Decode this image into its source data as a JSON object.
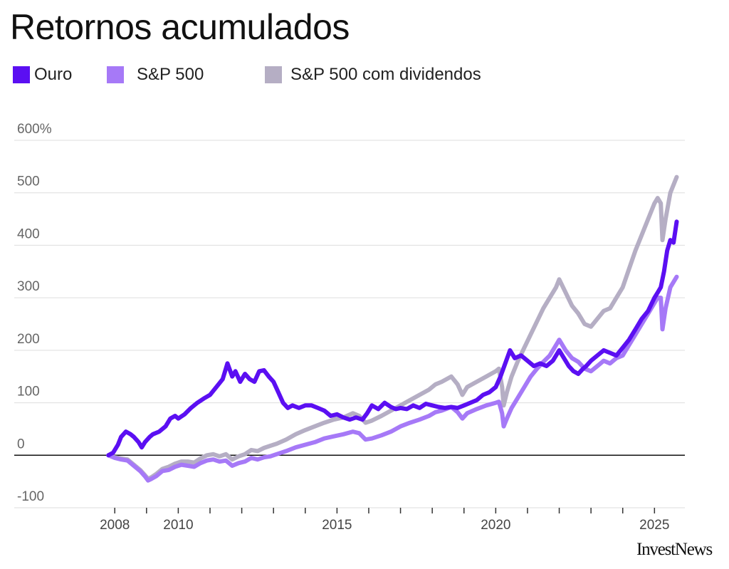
{
  "title": "Retornos acumulados",
  "brand": "InvestNews",
  "chart_data": {
    "type": "line",
    "title": "Retornos acumulados",
    "xlabel": "",
    "ylabel": "",
    "xlim": [
      2007.3,
      2025.8
    ],
    "ylim": [
      -100,
      600
    ],
    "yticks": [
      {
        "value": 600,
        "label": "600%"
      },
      {
        "value": 500,
        "label": "500"
      },
      {
        "value": 400,
        "label": "400"
      },
      {
        "value": 300,
        "label": "300"
      },
      {
        "value": 200,
        "label": "200"
      },
      {
        "value": 100,
        "label": "100"
      },
      {
        "value": 0,
        "label": "0"
      },
      {
        "value": -100,
        "label": "-100"
      }
    ],
    "xticks": [
      {
        "value": 2008,
        "label": "2008"
      },
      {
        "value": 2010,
        "label": "2010"
      },
      {
        "value": 2015,
        "label": "2015"
      },
      {
        "value": 2020,
        "label": "2020"
      },
      {
        "value": 2025,
        "label": "2025"
      }
    ],
    "grid": true,
    "legend_position": "top-left",
    "series": [
      {
        "name": "Ouro",
        "color": "#5b0ff2",
        "x": [
          2007.8,
          2007.95,
          2008.1,
          2008.2,
          2008.35,
          2008.5,
          2008.6,
          2008.75,
          2008.85,
          2008.95,
          2009.1,
          2009.2,
          2009.4,
          2009.6,
          2009.75,
          2009.9,
          2010.0,
          2010.2,
          2010.4,
          2010.6,
          2010.8,
          2011.0,
          2011.2,
          2011.4,
          2011.55,
          2011.7,
          2011.8,
          2011.95,
          2012.1,
          2012.25,
          2012.4,
          2012.55,
          2012.7,
          2012.85,
          2013.0,
          2013.15,
          2013.3,
          2013.45,
          2013.6,
          2013.8,
          2014.0,
          2014.2,
          2014.4,
          2014.6,
          2014.8,
          2015.0,
          2015.2,
          2015.4,
          2015.6,
          2015.8,
          2015.95,
          2016.1,
          2016.3,
          2016.5,
          2016.7,
          2016.85,
          2017.0,
          2017.2,
          2017.4,
          2017.6,
          2017.8,
          2018.0,
          2018.2,
          2018.4,
          2018.6,
          2018.8,
          2019.0,
          2019.2,
          2019.4,
          2019.6,
          2019.8,
          2020.0,
          2020.15,
          2020.3,
          2020.45,
          2020.6,
          2020.8,
          2021.0,
          2021.2,
          2021.4,
          2021.6,
          2021.8,
          2022.0,
          2022.15,
          2022.3,
          2022.45,
          2022.6,
          2022.75,
          2022.85,
          2023.0,
          2023.2,
          2023.4,
          2023.6,
          2023.8,
          2024.0,
          2024.2,
          2024.4,
          2024.6,
          2024.8,
          2025.0,
          2025.1,
          2025.2,
          2025.3,
          2025.4,
          2025.5,
          2025.6,
          2025.7
        ],
        "values": [
          0,
          5,
          20,
          35,
          45,
          40,
          35,
          25,
          15,
          25,
          35,
          40,
          45,
          55,
          70,
          75,
          70,
          78,
          90,
          100,
          108,
          115,
          130,
          145,
          175,
          150,
          160,
          140,
          155,
          145,
          140,
          160,
          162,
          150,
          140,
          120,
          100,
          90,
          95,
          90,
          95,
          95,
          90,
          85,
          75,
          78,
          72,
          68,
          72,
          68,
          80,
          95,
          88,
          100,
          92,
          88,
          90,
          88,
          95,
          90,
          98,
          95,
          92,
          90,
          92,
          90,
          95,
          100,
          105,
          115,
          120,
          130,
          150,
          175,
          200,
          185,
          190,
          180,
          170,
          175,
          170,
          180,
          200,
          185,
          170,
          160,
          155,
          165,
          170,
          180,
          190,
          200,
          195,
          190,
          205,
          220,
          240,
          260,
          275,
          300,
          310,
          320,
          350,
          390,
          410,
          405,
          445
        ]
      },
      {
        "name": "S&P 500",
        "color": "#a679f7",
        "x": [
          2007.8,
          2008.0,
          2008.2,
          2008.4,
          2008.6,
          2008.8,
          2008.95,
          2009.05,
          2009.15,
          2009.3,
          2009.5,
          2009.7,
          2009.9,
          2010.1,
          2010.3,
          2010.5,
          2010.7,
          2010.9,
          2011.1,
          2011.3,
          2011.5,
          2011.7,
          2011.9,
          2012.1,
          2012.3,
          2012.5,
          2012.7,
          2012.9,
          2013.1,
          2013.4,
          2013.7,
          2014.0,
          2014.3,
          2014.6,
          2014.9,
          2015.2,
          2015.5,
          2015.7,
          2015.9,
          2016.1,
          2016.4,
          2016.7,
          2017.0,
          2017.3,
          2017.6,
          2017.9,
          2018.1,
          2018.3,
          2018.6,
          2018.8,
          2018.95,
          2019.1,
          2019.4,
          2019.7,
          2020.0,
          2020.1,
          2020.2,
          2020.25,
          2020.35,
          2020.5,
          2020.7,
          2020.9,
          2021.1,
          2021.3,
          2021.5,
          2021.7,
          2021.9,
          2022.0,
          2022.2,
          2022.4,
          2022.6,
          2022.8,
          2023.0,
          2023.2,
          2023.4,
          2023.6,
          2023.8,
          2024.0,
          2024.2,
          2024.4,
          2024.6,
          2024.8,
          2025.0,
          2025.1,
          2025.2,
          2025.25,
          2025.35,
          2025.5,
          2025.7
        ],
        "values": [
          0,
          -5,
          -8,
          -10,
          -20,
          -30,
          -40,
          -48,
          -45,
          -40,
          -30,
          -28,
          -22,
          -18,
          -20,
          -22,
          -15,
          -10,
          -8,
          -12,
          -10,
          -20,
          -15,
          -12,
          -5,
          -8,
          -4,
          -2,
          2,
          8,
          15,
          20,
          25,
          32,
          36,
          40,
          45,
          42,
          30,
          32,
          38,
          45,
          55,
          62,
          68,
          75,
          82,
          85,
          92,
          82,
          70,
          80,
          88,
          95,
          100,
          102,
          80,
          55,
          70,
          90,
          110,
          130,
          150,
          165,
          178,
          190,
          210,
          220,
          200,
          185,
          178,
          165,
          160,
          170,
          180,
          175,
          185,
          190,
          210,
          230,
          250,
          270,
          290,
          300,
          300,
          240,
          280,
          320,
          340
        ]
      },
      {
        "name": "S&P 500 com dividendos",
        "color": "#b5aec4",
        "x": [
          2007.8,
          2008.0,
          2008.2,
          2008.4,
          2008.6,
          2008.8,
          2008.95,
          2009.05,
          2009.15,
          2009.3,
          2009.5,
          2009.7,
          2009.9,
          2010.1,
          2010.3,
          2010.5,
          2010.7,
          2010.9,
          2011.1,
          2011.3,
          2011.5,
          2011.7,
          2011.9,
          2012.1,
          2012.3,
          2012.5,
          2012.7,
          2012.9,
          2013.1,
          2013.4,
          2013.7,
          2014.0,
          2014.3,
          2014.6,
          2014.9,
          2015.2,
          2015.5,
          2015.7,
          2015.9,
          2016.1,
          2016.4,
          2016.7,
          2017.0,
          2017.3,
          2017.6,
          2017.9,
          2018.1,
          2018.3,
          2018.6,
          2018.8,
          2018.95,
          2019.1,
          2019.4,
          2019.7,
          2020.0,
          2020.1,
          2020.2,
          2020.25,
          2020.35,
          2020.5,
          2020.7,
          2020.9,
          2021.1,
          2021.3,
          2021.5,
          2021.7,
          2021.9,
          2022.0,
          2022.2,
          2022.4,
          2022.6,
          2022.8,
          2023.0,
          2023.2,
          2023.4,
          2023.6,
          2023.8,
          2024.0,
          2024.2,
          2024.4,
          2024.6,
          2024.8,
          2025.0,
          2025.1,
          2025.2,
          2025.25,
          2025.35,
          2025.5,
          2025.7
        ],
        "values": [
          0,
          -4,
          -6,
          -8,
          -18,
          -28,
          -38,
          -45,
          -42,
          -36,
          -26,
          -22,
          -16,
          -12,
          -12,
          -14,
          -6,
          0,
          2,
          -2,
          2,
          -8,
          -2,
          2,
          10,
          8,
          14,
          18,
          22,
          30,
          40,
          48,
          55,
          62,
          68,
          72,
          80,
          75,
          62,
          66,
          75,
          85,
          95,
          105,
          115,
          125,
          135,
          140,
          150,
          135,
          115,
          130,
          140,
          150,
          160,
          165,
          130,
          95,
          120,
          150,
          180,
          205,
          230,
          255,
          280,
          300,
          320,
          335,
          310,
          285,
          270,
          250,
          245,
          260,
          275,
          280,
          300,
          320,
          355,
          390,
          420,
          450,
          480,
          490,
          480,
          410,
          450,
          500,
          530
        ]
      }
    ]
  }
}
